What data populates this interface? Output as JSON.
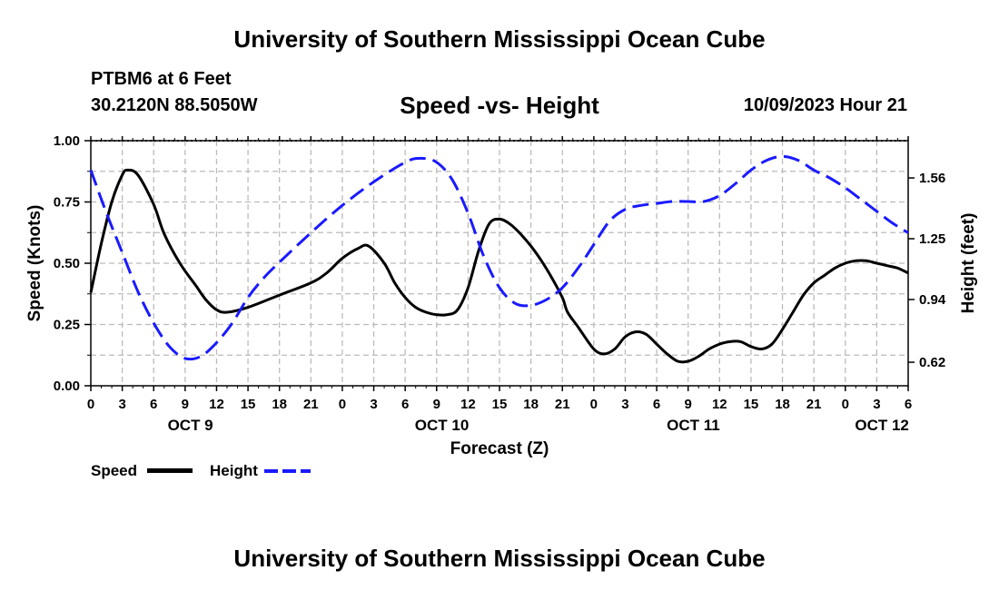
{
  "header": {
    "title": "University of Southern Mississippi Ocean Cube",
    "station": "PTBM6 at 6 Feet",
    "coords": "30.2120N  88.5050W",
    "chart_title": "Speed -vs- Height",
    "timestamp": "10/09/2023 Hour 21"
  },
  "footer": {
    "title": "University of Southern Mississippi Ocean Cube"
  },
  "legend": {
    "speed_label": "Speed",
    "height_label": "Height"
  },
  "colors": {
    "speed": "#000000",
    "height": "#1a1aff",
    "grid": "#bbbbbb"
  },
  "chart_data": {
    "type": "line",
    "title": "Speed -vs- Height",
    "xlabel": "Forecast (Z)",
    "ylabel": "Speed (Knots)",
    "y2label": "Height (feet)",
    "x_unit": "hours since 10/09 00Z",
    "xlim": [
      0,
      78
    ],
    "ylim": [
      0,
      1.0
    ],
    "y2lim": [
      0.5,
      1.75
    ],
    "x_ticks": [
      0,
      3,
      6,
      9,
      12,
      15,
      18,
      21,
      24,
      27,
      30,
      33,
      36,
      39,
      42,
      45,
      48,
      51,
      54,
      57,
      60,
      63,
      66,
      69,
      72,
      75,
      78
    ],
    "x_tick_labels": [
      "0",
      "3",
      "6",
      "9",
      "12",
      "15",
      "18",
      "21",
      "0",
      "3",
      "6",
      "9",
      "12",
      "15",
      "18",
      "21",
      "0",
      "3",
      "6",
      "9",
      "12",
      "15",
      "18",
      "21",
      "0",
      "3",
      "6"
    ],
    "y_ticks": [
      0,
      0.25,
      0.5,
      0.75,
      1.0
    ],
    "y_tick_labels": [
      "0.00",
      "0.25",
      "0.50",
      "0.75",
      "1.00"
    ],
    "y2_ticks": [
      0.62,
      0.94,
      1.25,
      1.56
    ],
    "y2_tick_labels": [
      "0.62",
      "0.94",
      "1.25",
      "1.56"
    ],
    "day_labels": [
      {
        "label": "OCT 9",
        "x": 9.5
      },
      {
        "label": "OCT 10",
        "x": 33.5
      },
      {
        "label": "OCT 11",
        "x": 57.5
      },
      {
        "label": "OCT 12",
        "x": 75.5
      }
    ],
    "grid": true,
    "series": [
      {
        "name": "Speed",
        "axis": "left",
        "style": "solid",
        "x": [
          0,
          1,
          2,
          3,
          3.5,
          4.5,
          6,
          7,
          8.5,
          10,
          11,
          12,
          13,
          15,
          18,
          21,
          22.5,
          24,
          25.5,
          26.5,
          28,
          29,
          30,
          31,
          32,
          33,
          34,
          35,
          36,
          37,
          38,
          39,
          40,
          41,
          42,
          43,
          44,
          45,
          45.5,
          46.5,
          48,
          49,
          50,
          51,
          52,
          53,
          54,
          55,
          56,
          57,
          58,
          59,
          60,
          61,
          62,
          63,
          64,
          65,
          66,
          67,
          68,
          69,
          70,
          71,
          72,
          73,
          74,
          75,
          76,
          77,
          78
        ],
        "values": [
          0.38,
          0.58,
          0.75,
          0.86,
          0.88,
          0.86,
          0.74,
          0.62,
          0.5,
          0.41,
          0.35,
          0.31,
          0.3,
          0.32,
          0.37,
          0.42,
          0.46,
          0.52,
          0.56,
          0.57,
          0.5,
          0.42,
          0.36,
          0.32,
          0.3,
          0.29,
          0.29,
          0.31,
          0.4,
          0.55,
          0.66,
          0.68,
          0.66,
          0.62,
          0.57,
          0.51,
          0.44,
          0.36,
          0.3,
          0.24,
          0.15,
          0.13,
          0.15,
          0.2,
          0.22,
          0.21,
          0.17,
          0.13,
          0.1,
          0.1,
          0.12,
          0.15,
          0.17,
          0.18,
          0.18,
          0.16,
          0.15,
          0.17,
          0.23,
          0.3,
          0.37,
          0.42,
          0.45,
          0.48,
          0.5,
          0.51,
          0.51,
          0.5,
          0.49,
          0.48,
          0.46
        ]
      },
      {
        "name": "Height",
        "axis": "right",
        "style": "dashed",
        "x": [
          0,
          1.5,
          3,
          4.5,
          6,
          7.5,
          9,
          10.5,
          12,
          13.5,
          15,
          16.5,
          18,
          21,
          24,
          27,
          30,
          31.5,
          33,
          34.5,
          36,
          37.5,
          39,
          40.5,
          42,
          43.5,
          45,
          46.5,
          48,
          49.5,
          51,
          52.5,
          54,
          55.5,
          57,
          58.5,
          60,
          61.5,
          63,
          64.5,
          66,
          67.5,
          69,
          70.5,
          72,
          73.5,
          75,
          76.5,
          78
        ],
        "values": [
          1.6,
          1.38,
          1.18,
          0.98,
          0.82,
          0.7,
          0.64,
          0.65,
          0.72,
          0.82,
          0.95,
          1.05,
          1.13,
          1.28,
          1.42,
          1.54,
          1.64,
          1.66,
          1.64,
          1.55,
          1.38,
          1.16,
          1.0,
          0.92,
          0.91,
          0.94,
          1.0,
          1.1,
          1.22,
          1.34,
          1.4,
          1.42,
          1.43,
          1.44,
          1.44,
          1.44,
          1.47,
          1.53,
          1.6,
          1.65,
          1.67,
          1.65,
          1.6,
          1.56,
          1.51,
          1.45,
          1.39,
          1.33,
          1.28
        ]
      }
    ]
  }
}
